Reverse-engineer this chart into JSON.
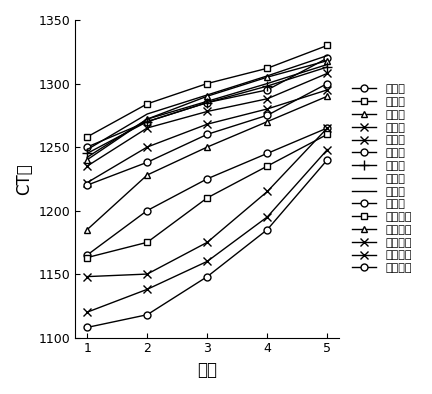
{
  "x": [
    1,
    2,
    3,
    4,
    5
  ],
  "series": [
    {
      "label": "第一层",
      "marker": "o",
      "values": [
        1250,
        1270,
        1285,
        1295,
        1320
      ]
    },
    {
      "label": "第二层",
      "marker": "s",
      "values": [
        1258,
        1284,
        1300,
        1312,
        1330
      ]
    },
    {
      "label": "第三层",
      "marker": "^",
      "values": [
        1240,
        1272,
        1290,
        1305,
        1318
      ]
    },
    {
      "label": "第四层",
      "marker": "x",
      "values": [
        1222,
        1250,
        1268,
        1280,
        1295
      ]
    },
    {
      "label": "第五层",
      "marker": "x",
      "values": [
        1235,
        1265,
        1278,
        1288,
        1308
      ]
    },
    {
      "label": "第六层",
      "marker": "o",
      "values": [
        1220,
        1238,
        1260,
        1275,
        1300
      ]
    },
    {
      "label": "第七层",
      "marker": "+",
      "values": [
        1245,
        1270,
        1285,
        1298,
        1313
      ]
    },
    {
      "label": "第八层",
      "marker": null,
      "values": [
        1242,
        1272,
        1286,
        1300,
        1315
      ]
    },
    {
      "label": "第九层",
      "marker": null,
      "values": [
        1248,
        1276,
        1291,
        1306,
        1322
      ]
    },
    {
      "label": "第十层",
      "marker": "o",
      "values": [
        1165,
        1200,
        1225,
        1245,
        1265
      ]
    },
    {
      "label": "第十一层",
      "marker": "s",
      "values": [
        1163,
        1175,
        1210,
        1235,
        1260
      ]
    },
    {
      "label": "第十二层",
      "marker": "^",
      "values": [
        1185,
        1228,
        1250,
        1270,
        1290
      ]
    },
    {
      "label": "第十三层",
      "marker": "x",
      "values": [
        1148,
        1150,
        1175,
        1215,
        1265
      ]
    },
    {
      "label": "第十四层",
      "marker": "x",
      "values": [
        1120,
        1138,
        1160,
        1195,
        1248
      ]
    },
    {
      "label": "第十五层",
      "marker": "o",
      "values": [
        1108,
        1118,
        1148,
        1185,
        1240
      ]
    }
  ],
  "xlabel": "圈数",
  "ylabel": "CT数",
  "ylim": [
    1100,
    1350
  ],
  "xlim": [
    0.8,
    5.2
  ],
  "yticks": [
    1100,
    1150,
    1200,
    1250,
    1300,
    1350
  ],
  "xticks": [
    1,
    2,
    3,
    4,
    5
  ],
  "axis_fontsize": 12,
  "legend_fontsize": 8,
  "background_color": "#ffffff"
}
